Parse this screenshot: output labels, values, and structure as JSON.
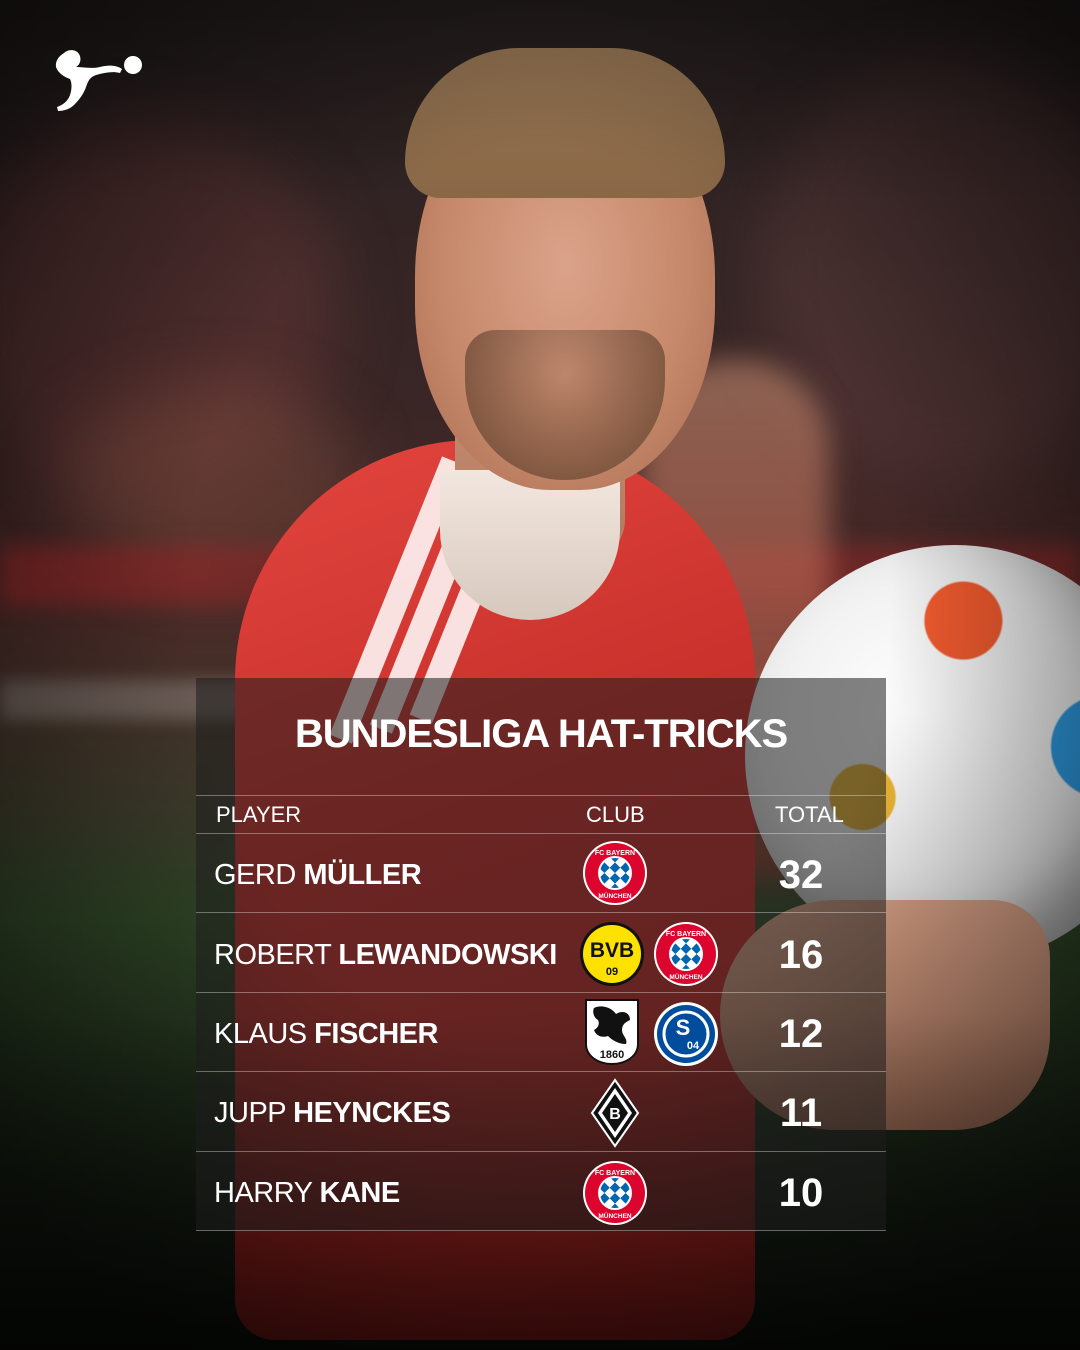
{
  "brand": {
    "logo": "bundesliga-logo"
  },
  "title": "BUNDESLIGA HAT-TRICKS",
  "columns": {
    "player": "PLAYER",
    "club": "CLUB",
    "total": "TOTAL"
  },
  "rows": [
    {
      "first": "GERD",
      "last": "MÜLLER",
      "clubs": [
        "fc-bayern-crest"
      ],
      "total": "32"
    },
    {
      "first": "ROBERT",
      "last": "LEWANDOWSKI",
      "clubs": [
        "bvb-crest",
        "fc-bayern-crest"
      ],
      "total": "16"
    },
    {
      "first": "KLAUS",
      "last": "FISCHER",
      "clubs": [
        "tsv-1860-crest",
        "schalke-04-crest"
      ],
      "total": "12"
    },
    {
      "first": "JUPP",
      "last": "HEYNCKES",
      "clubs": [
        "gladbach-crest"
      ],
      "total": "11"
    },
    {
      "first": "HARRY",
      "last": "KANE",
      "clubs": [
        "fc-bayern-crest"
      ],
      "total": "10"
    }
  ],
  "crest_text": {
    "bayern_top": "FC BAYERN",
    "bayern_bottom": "MÜNCHEN",
    "bvb": "BVB",
    "bvb_year": "09",
    "tsv": "1860",
    "schalke": "S",
    "schalke_num": "04",
    "gladbach": "B"
  },
  "colors": {
    "bayern_red": "#dc052d",
    "bayern_blue": "#0066b2",
    "bvb_yellow": "#fde100",
    "schalke_blue": "#004d9d",
    "panel": "#1e1e1e",
    "text": "#ffffff"
  }
}
